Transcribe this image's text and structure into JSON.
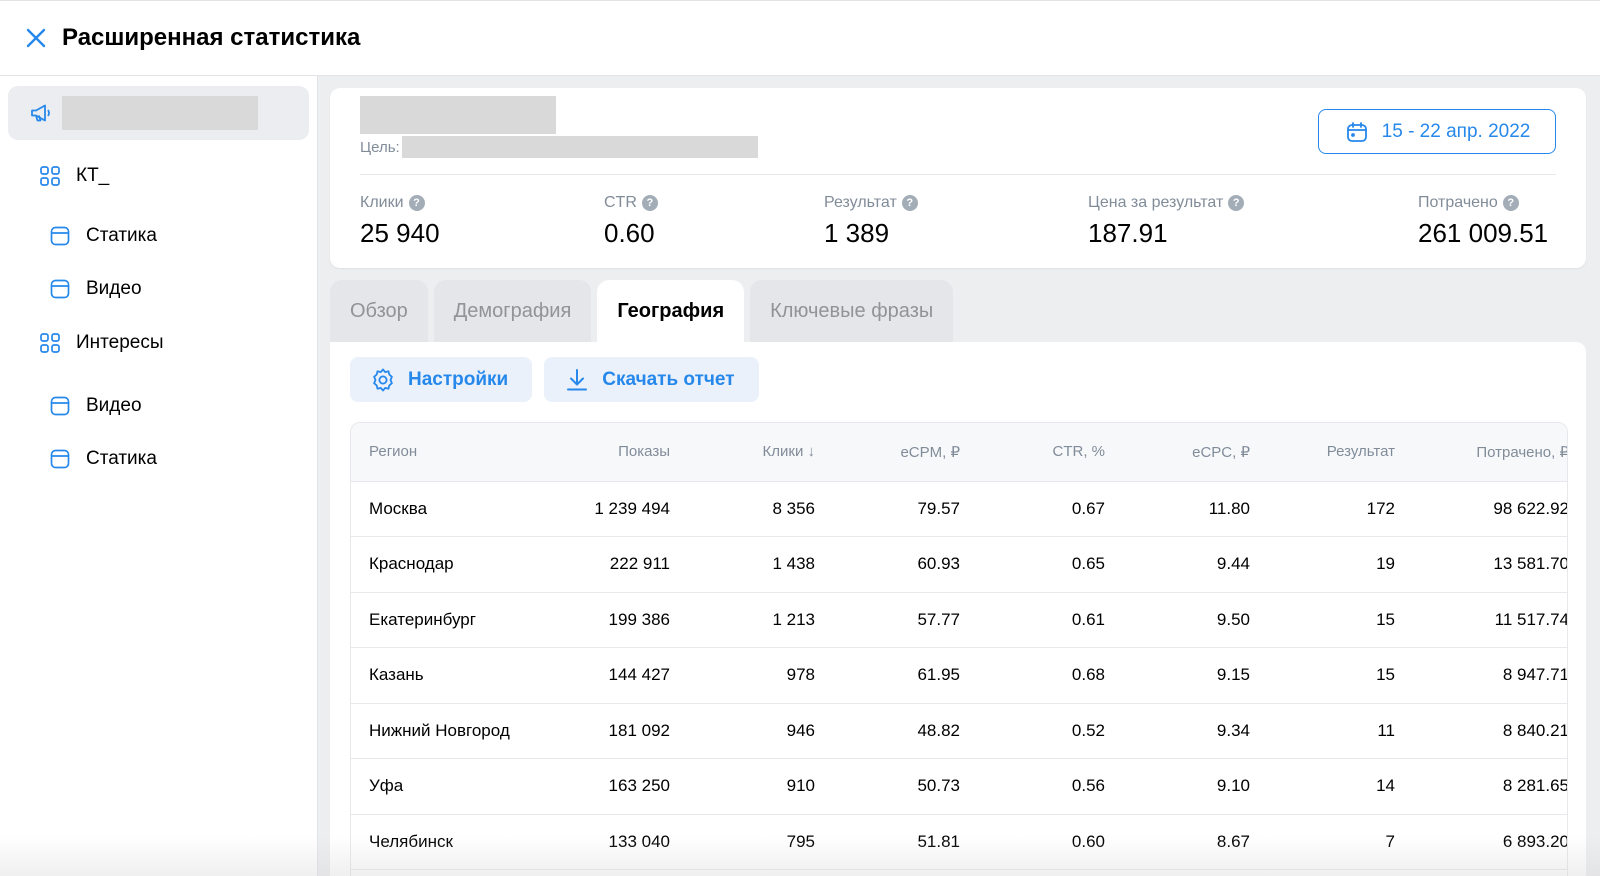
{
  "header": {
    "title": "Расширенная статистика",
    "close_icon": "close-icon"
  },
  "sidebar": {
    "campaign_icon": "megaphone-icon",
    "items": [
      {
        "label": "КТ_",
        "icon": "grid-icon"
      },
      {
        "label": "Статика",
        "icon": "ad-icon"
      },
      {
        "label": "Видео",
        "icon": "ad-icon"
      },
      {
        "label": "Интересы",
        "icon": "grid-icon"
      },
      {
        "label": "Видео",
        "icon": "ad-icon"
      },
      {
        "label": "Статика",
        "icon": "ad-icon"
      }
    ]
  },
  "summary": {
    "goal_label": "Цель:",
    "date_range": "15 - 22 апр. 2022",
    "metrics": [
      {
        "label": "Клики",
        "value": "25 940"
      },
      {
        "label": "CTR",
        "value": "0.60"
      },
      {
        "label": "Результат",
        "value": "1 389"
      },
      {
        "label": "Цена за результат",
        "value": "187.91"
      },
      {
        "label": "Потрачено",
        "value": "261 009.51"
      }
    ]
  },
  "tabs": [
    "Обзор",
    "Демография",
    "География",
    "Ключевые фразы"
  ],
  "active_tab": "География",
  "actions": {
    "settings_label": "Настройки",
    "download_label": "Скачать отчет"
  },
  "table": {
    "columns": [
      "Регион",
      "Показы",
      "Клики ↓",
      "eCPM, ₽",
      "CTR, %",
      "eCPC, ₽",
      "Результат",
      "Потрачено, ₽"
    ],
    "rows": [
      [
        "Москва",
        "1 239 494",
        "8 356",
        "79.57",
        "0.67",
        "11.80",
        "172",
        "98 622.92"
      ],
      [
        "Краснодар",
        "222 911",
        "1 438",
        "60.93",
        "0.65",
        "9.44",
        "19",
        "13 581.70"
      ],
      [
        "Екатеринбург",
        "199 386",
        "1 213",
        "57.77",
        "0.61",
        "9.50",
        "15",
        "11 517.74"
      ],
      [
        "Казань",
        "144 427",
        "978",
        "61.95",
        "0.68",
        "9.15",
        "15",
        "8 947.71"
      ],
      [
        "Нижний Новгород",
        "181 092",
        "946",
        "48.82",
        "0.52",
        "9.34",
        "11",
        "8 840.21"
      ],
      [
        "Уфа",
        "163 250",
        "910",
        "50.73",
        "0.56",
        "9.10",
        "14",
        "8 281.65"
      ],
      [
        "Челябинск",
        "133 040",
        "795",
        "51.81",
        "0.60",
        "8.67",
        "7",
        "6 893.20"
      ]
    ]
  },
  "colors": {
    "accent": "#2688eb",
    "muted": "#818c99",
    "background": "#edeef0"
  }
}
